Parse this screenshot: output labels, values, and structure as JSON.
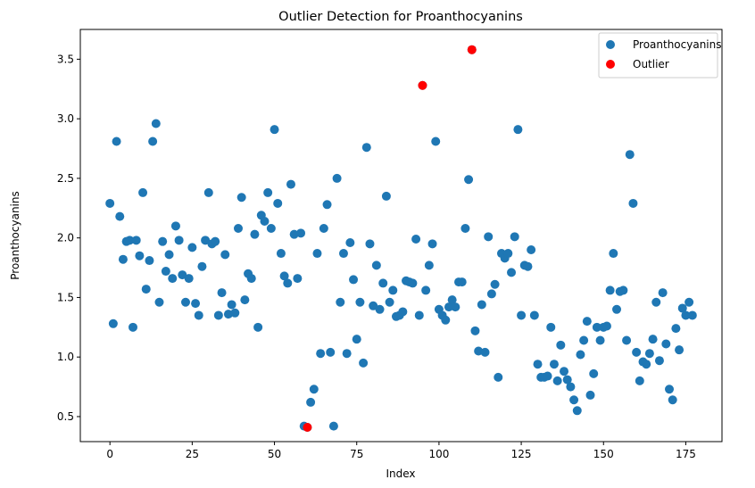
{
  "chart_data": {
    "type": "scatter",
    "title": "Outlier Detection for Proanthocyanins",
    "xlabel": "Index",
    "ylabel": "Proanthocyanins",
    "xlim": [
      -9,
      186
    ],
    "ylim": [
      0.29,
      3.75
    ],
    "xticks": [
      0,
      25,
      50,
      75,
      100,
      125,
      150,
      175
    ],
    "yticks": [
      0.5,
      1.0,
      1.5,
      2.0,
      2.5,
      3.0,
      3.5
    ],
    "grid": false,
    "legend_position": "top-right",
    "series": [
      {
        "name": "Proanthocyanins",
        "color": "#1f77b4",
        "y": [
          2.29,
          1.28,
          2.81,
          2.18,
          1.82,
          1.97,
          1.98,
          1.25,
          1.98,
          1.85,
          2.38,
          1.57,
          1.81,
          2.81,
          2.96,
          1.46,
          1.97,
          1.72,
          1.86,
          1.66,
          2.1,
          1.98,
          1.69,
          1.46,
          1.66,
          1.92,
          1.45,
          1.35,
          1.76,
          1.98,
          2.38,
          1.95,
          1.97,
          1.35,
          1.54,
          1.86,
          1.36,
          1.44,
          1.37,
          2.08,
          2.34,
          1.48,
          1.7,
          1.66,
          2.03,
          1.25,
          2.19,
          2.14,
          2.38,
          2.08,
          2.91,
          2.29,
          1.87,
          1.68,
          1.62,
          2.45,
          2.03,
          1.66,
          2.04,
          0.42,
          0.41,
          0.62,
          0.73,
          1.87,
          1.03,
          2.08,
          2.28,
          1.04,
          0.42,
          2.5,
          1.46,
          1.87,
          1.03,
          1.96,
          1.65,
          1.15,
          1.46,
          0.95,
          2.76,
          1.95,
          1.43,
          1.77,
          1.4,
          1.62,
          2.35,
          1.46,
          1.56,
          1.34,
          1.35,
          1.38,
          1.64,
          1.63,
          1.62,
          1.99,
          1.35,
          3.28,
          1.56,
          1.77,
          1.95,
          2.81,
          1.4,
          1.35,
          1.31,
          1.42,
          1.48,
          1.42,
          1.63,
          1.63,
          2.08,
          2.49,
          3.58,
          1.22,
          1.05,
          1.44,
          1.04,
          2.01,
          1.53,
          1.61,
          0.83,
          1.87,
          1.83,
          1.87,
          1.71,
          2.01,
          2.91,
          1.35,
          1.77,
          1.76,
          1.9,
          1.35,
          0.94,
          0.83,
          0.83,
          0.84,
          1.25,
          0.94,
          0.8,
          1.1,
          0.88,
          0.81,
          0.75,
          0.64,
          0.55,
          1.02,
          1.14,
          1.3,
          0.68,
          0.86,
          1.25,
          1.14,
          1.25,
          1.26,
          1.56,
          1.87,
          1.4,
          1.55,
          1.56,
          1.14,
          2.7,
          2.29,
          1.04,
          0.8,
          0.96,
          0.94,
          1.03,
          1.15,
          1.46,
          0.97,
          1.54,
          1.11,
          0.73,
          0.64,
          1.24,
          1.06,
          1.41,
          1.35,
          1.46,
          1.35
        ]
      },
      {
        "name": "Outlier",
        "color": "#ff0000",
        "x": [
          60,
          95,
          110
        ],
        "y": [
          0.41,
          3.28,
          3.58
        ]
      }
    ]
  }
}
